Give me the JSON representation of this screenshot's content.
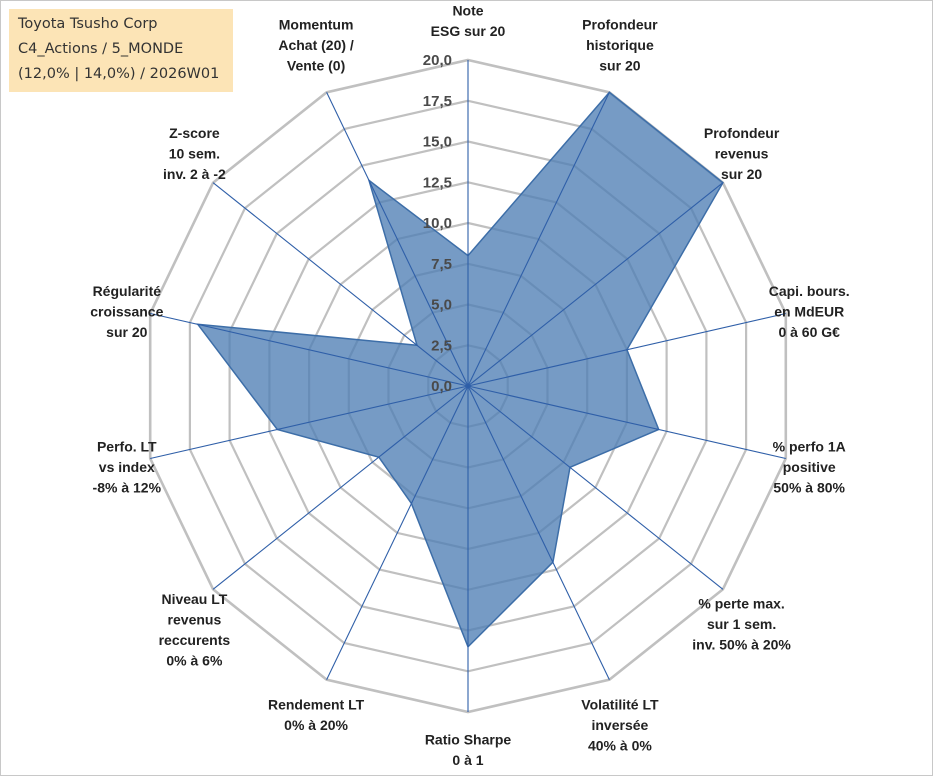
{
  "title": {
    "line1": "Toyota Tsusho Corp",
    "line2": "C4_Actions / 5_MONDE",
    "line3": "(12,0% | 14,0%) / 2026W01"
  },
  "chart_data": {
    "type": "radar",
    "rmin": 0,
    "rmax": 20,
    "ticks": [
      "0,0",
      "2,5",
      "5,0",
      "7,5",
      "10,0",
      "12,5",
      "15,0",
      "17,5",
      "20,0"
    ],
    "axes": [
      [
        "Note",
        "ESG sur 20"
      ],
      [
        "Profondeur",
        "historique",
        "sur 20"
      ],
      [
        "Profondeur",
        "revenus",
        "sur 20"
      ],
      [
        "Capi. bours.",
        "en MdEUR",
        "0 à 60 G€"
      ],
      [
        "% perfo 1A",
        "positive",
        "50% à 80%"
      ],
      [
        "% perte max.",
        "sur 1 sem.",
        "inv. 50% à 20%"
      ],
      [
        "Volatilité LT",
        "inversée",
        "40% à 0%"
      ],
      [
        "Ratio Sharpe",
        "0 à 1"
      ],
      [
        "Rendement LT",
        "0% à 20%"
      ],
      [
        "Niveau LT",
        "revenus",
        "reccurents",
        "0% à 6%"
      ],
      [
        "Perfo. LT",
        "vs index",
        "-8% à 12%"
      ],
      [
        "Régularité",
        "croissance",
        "sur 20"
      ],
      [
        "Z-score",
        "10 sem.",
        "inv. 2 à -2"
      ],
      [
        "Momentum",
        "Achat (20) /",
        "Vente (0)"
      ]
    ],
    "series": [
      {
        "name": "Toyota Tsusho Corp",
        "values": [
          8.0,
          20.0,
          20.0,
          10.0,
          12.0,
          8.0,
          12.0,
          16.0,
          8.0,
          7.0,
          12.0,
          17.0,
          4.0,
          14.0
        ]
      }
    ],
    "colors": {
      "fill": "#4f7fb5",
      "stroke": "#3d6ea8",
      "grid": "#c0c0c0",
      "spoke": "#2f5fa8"
    }
  }
}
